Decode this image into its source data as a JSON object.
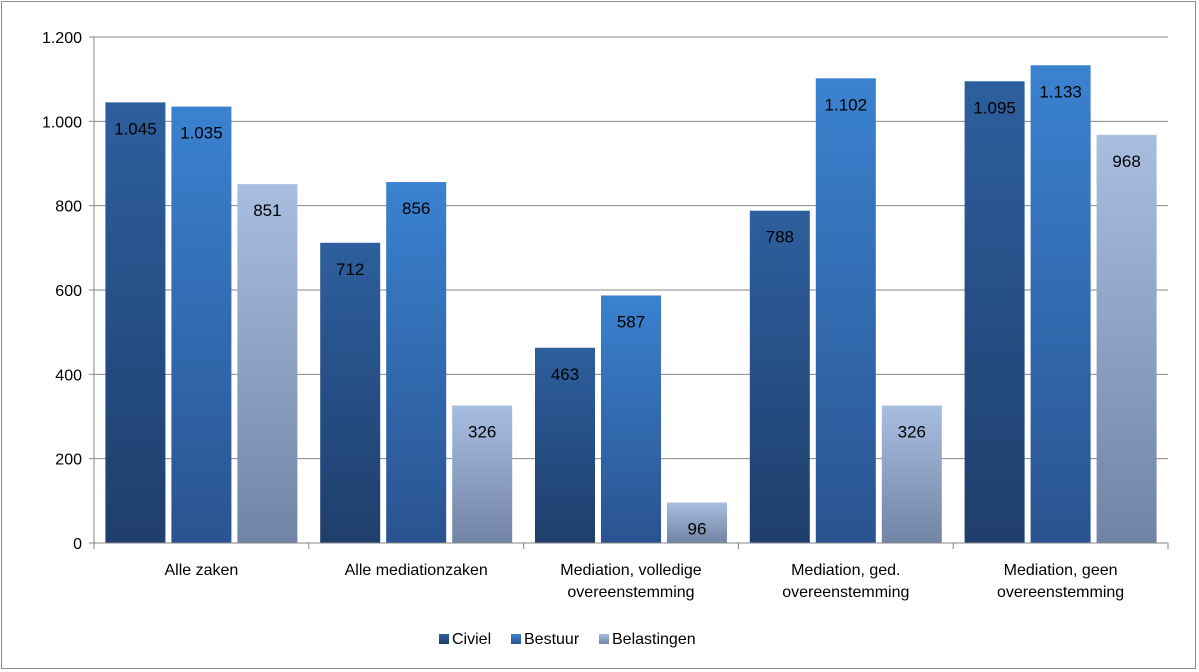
{
  "chart_data": {
    "type": "bar",
    "categories": [
      [
        "Alle zaken"
      ],
      [
        "Alle mediationzaken"
      ],
      [
        "Mediation, volledige",
        "overeenstemming"
      ],
      [
        "Mediation, ged.",
        "overeenstemming"
      ],
      [
        "Mediation, geen",
        "overeenstemming"
      ]
    ],
    "series": [
      {
        "name": "Civiel",
        "values": [
          1045,
          712,
          463,
          788,
          1095
        ],
        "labels": [
          "1.045",
          "712",
          "463",
          "788",
          "1.095"
        ],
        "color_top": "#2d5f9e",
        "color_bottom": "#1f3e6b"
      },
      {
        "name": "Bestuur",
        "values": [
          1035,
          856,
          587,
          1102,
          1133
        ],
        "labels": [
          "1.035",
          "856",
          "587",
          "1.102",
          "1.133"
        ],
        "color_top": "#3a82d0",
        "color_bottom": "#2a5390"
      },
      {
        "name": "Belastingen",
        "values": [
          851,
          326,
          96,
          326,
          968
        ],
        "labels": [
          "851",
          "326",
          "96",
          "326",
          "968"
        ],
        "color_top": "#a8bee0",
        "color_bottom": "#7284a5"
      }
    ],
    "ylim": [
      0,
      1200
    ],
    "yticks": [
      0,
      200,
      400,
      600,
      800,
      1000,
      1200
    ],
    "ytick_labels": [
      "0",
      "200",
      "400",
      "600",
      "800",
      "1.000",
      "1.200"
    ],
    "grid": true,
    "legend_position": "bottom",
    "title": "",
    "xlabel": "",
    "ylabel": ""
  }
}
